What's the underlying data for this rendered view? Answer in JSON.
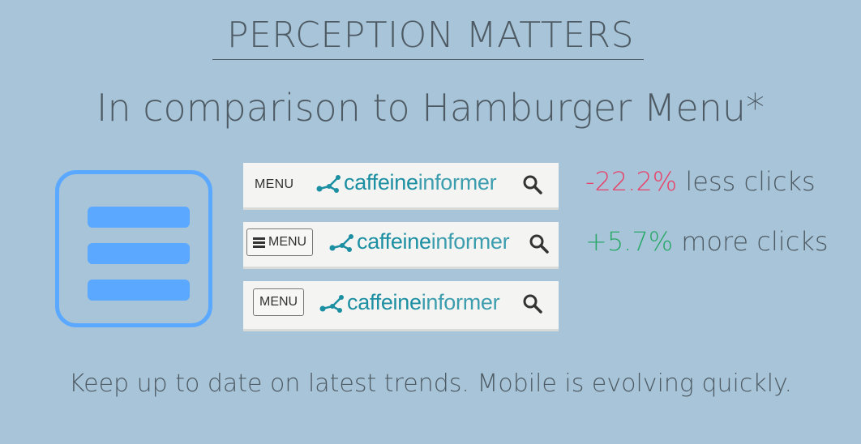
{
  "heading": {
    "title": "PERCEPTION MATTERS",
    "subtitle": "In comparison to Hamburger Menu*"
  },
  "variants": [
    {
      "menu_label": "MENU",
      "logo_a": "caffeine",
      "logo_b": "informer",
      "stat_value": "-22.2%",
      "stat_text": " less clicks",
      "stat_color": "#e8426a"
    },
    {
      "menu_label": "MENU",
      "logo_a": "caffeine",
      "logo_b": "informer",
      "stat_value": "+5.7%",
      "stat_text": " more clicks",
      "stat_color": "#2aa86a"
    },
    {
      "menu_label": "MENU",
      "logo_a": "caffeine",
      "logo_b": "informer"
    }
  ],
  "footer": "Keep up to date on latest trends. Mobile is evolving quickly.",
  "colors": {
    "background": "#a7c4d8",
    "hamburger": "#5aa8ff",
    "logo": "#1c8fa3"
  },
  "icons": [
    "hamburger-icon",
    "molecule-logo-icon",
    "search-icon"
  ]
}
